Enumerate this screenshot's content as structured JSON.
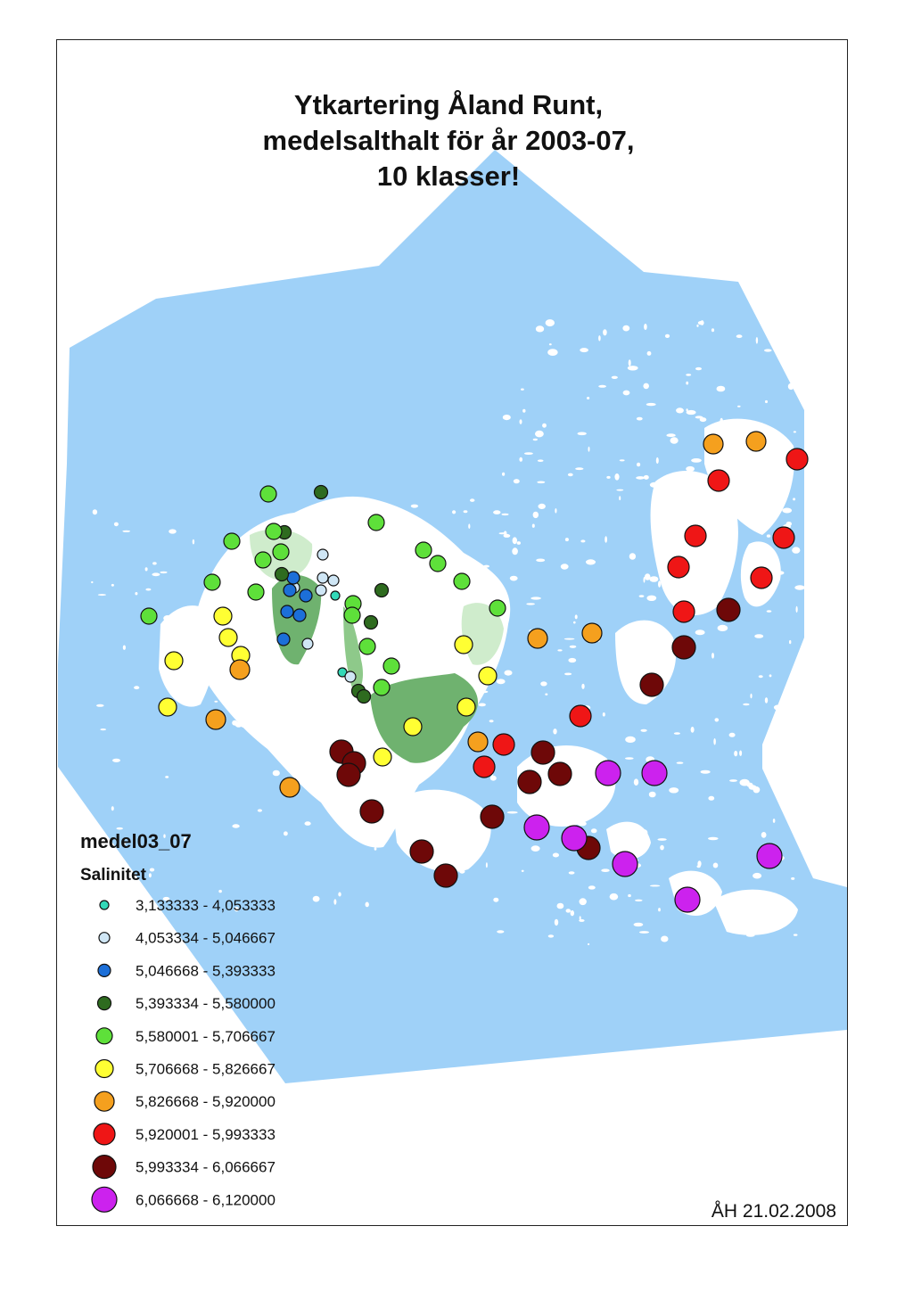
{
  "title": {
    "lines": [
      "Ytkartering Åland Runt,",
      "medelsalthalt för år 2003-07,",
      "10 klasser!"
    ]
  },
  "legend": {
    "layer_name": "medel03_07",
    "field_name": "Salinitet",
    "classes": [
      {
        "label": "3,133333 - 4,053333",
        "color": "#33d9b8"
      },
      {
        "label": "4,053334 - 5,046667",
        "color": "#cfe6f5"
      },
      {
        "label": "5,046668 - 5,393333",
        "color": "#1c6fd8"
      },
      {
        "label": "5,393334 - 5,580000",
        "color": "#2e6b1f"
      },
      {
        "label": "5,580001 - 5,706667",
        "color": "#5ee03a"
      },
      {
        "label": "5,706668 - 5,826667",
        "color": "#ffff33"
      },
      {
        "label": "5,826668 - 5,920000",
        "color": "#f5a01e"
      },
      {
        "label": "5,920001 - 5,993333",
        "color": "#ef1616"
      },
      {
        "label": "5,993334 - 6,066667",
        "color": "#6e0808"
      },
      {
        "label": "6,066668 - 6,120000",
        "color": "#cc22ee"
      }
    ]
  },
  "credit": "ÅH 21.02.2008",
  "colors": {
    "sea": "#9fd1f8",
    "land": "#ffffff",
    "green_area_dark": "#6fb26f",
    "green_area_light": "#cfeccc",
    "frame": "#222222"
  }
}
